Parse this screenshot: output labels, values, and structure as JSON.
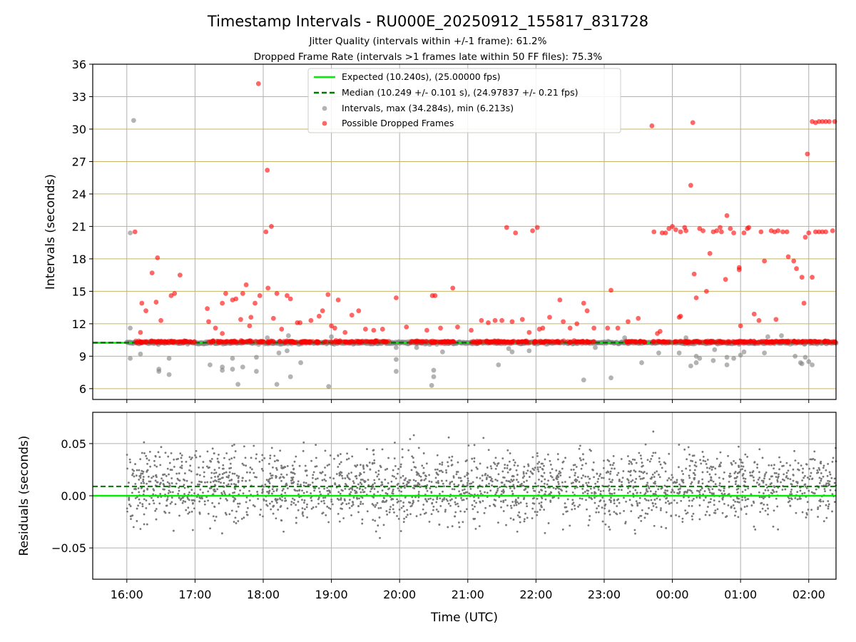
{
  "title": "Timestamp Intervals - RU000E_20250912_155817_831728",
  "subtitle_1": "Jitter Quality (intervals within +/-1 frame): 61.2%",
  "subtitle_2": "Dropped Frame Rate (intervals >1 frames late within 50 FF files): 75.3%",
  "colors": {
    "expected": "#00ee00",
    "median": "#007700",
    "intervals": "#808080",
    "dropped": "#ff0000",
    "hgrid_top": "#c8b464",
    "grid": "#b0b0b0",
    "residuals": "#777777"
  },
  "chart_data": [
    {
      "type": "scatter",
      "ylabel": "Intervals (seconds)",
      "xlim_hours": [
        15.5,
        26.4
      ],
      "ylim": [
        5,
        36
      ],
      "yticks": [
        6,
        9,
        12,
        15,
        18,
        21,
        24,
        27,
        30,
        33,
        36
      ],
      "grid": true,
      "legend_placement": "top-center",
      "legend": [
        "Expected (10.240s), (25.00000 fps)",
        "Median (10.249 +/- 0.101 s), (24.97837 +/- 0.21 fps)",
        "Intervals, max (34.284s), min (6.213s)",
        "Possible Dropped Frames"
      ],
      "expected_interval": 10.24,
      "median_interval": 10.249,
      "baseline": {
        "x_start": 16.0,
        "x_end": 26.4,
        "y": 10.24
      },
      "series": [
        {
          "name": "Intervals, max (34.284s), min (6.213s)",
          "points": [
            [
              16.1,
              30.8
            ],
            [
              16.05,
              20.4
            ],
            [
              16.05,
              11.6
            ],
            [
              16.05,
              8.8
            ],
            [
              16.2,
              9.2
            ],
            [
              16.47,
              7.8
            ],
            [
              16.47,
              7.6
            ],
            [
              16.62,
              7.3
            ],
            [
              16.62,
              8.8
            ],
            [
              17.22,
              8.2
            ],
            [
              17.4,
              8.0
            ],
            [
              17.4,
              7.7
            ],
            [
              17.55,
              7.8
            ],
            [
              17.55,
              8.8
            ],
            [
              17.63,
              6.4
            ],
            [
              17.7,
              8.0
            ],
            [
              17.9,
              7.6
            ],
            [
              17.9,
              8.9
            ],
            [
              18.06,
              10.7
            ],
            [
              18.2,
              6.4
            ],
            [
              18.23,
              9.3
            ],
            [
              18.35,
              9.5
            ],
            [
              18.37,
              10.9
            ],
            [
              18.4,
              7.1
            ],
            [
              18.55,
              8.4
            ],
            [
              18.96,
              6.2
            ],
            [
              19.0,
              10.8
            ],
            [
              19.95,
              8.7
            ],
            [
              19.95,
              7.6
            ],
            [
              19.95,
              9.8
            ],
            [
              20.25,
              9.8
            ],
            [
              20.47,
              6.3
            ],
            [
              20.5,
              7.1
            ],
            [
              20.5,
              7.7
            ],
            [
              20.63,
              9.4
            ],
            [
              21.45,
              8.2
            ],
            [
              21.6,
              9.7
            ],
            [
              21.65,
              9.4
            ],
            [
              21.9,
              9.5
            ],
            [
              22.7,
              6.8
            ],
            [
              22.87,
              9.8
            ],
            [
              23.1,
              7.0
            ],
            [
              23.55,
              8.4
            ],
            [
              23.8,
              9.3
            ],
            [
              24.1,
              9.3
            ],
            [
              24.27,
              8.1
            ],
            [
              24.35,
              8.4
            ],
            [
              24.35,
              9.0
            ],
            [
              24.4,
              8.8
            ],
            [
              24.6,
              8.6
            ],
            [
              24.62,
              9.6
            ],
            [
              24.8,
              8.2
            ],
            [
              24.8,
              8.9
            ],
            [
              24.9,
              8.8
            ],
            [
              25.0,
              9.1
            ],
            [
              25.05,
              9.4
            ],
            [
              25.35,
              9.3
            ],
            [
              25.6,
              10.9
            ],
            [
              25.8,
              9.0
            ],
            [
              25.88,
              8.4
            ],
            [
              25.9,
              8.3
            ],
            [
              25.95,
              8.9
            ],
            [
              26.0,
              8.5
            ],
            [
              26.05,
              8.2
            ],
            [
              25.4,
              10.8
            ],
            [
              24.2,
              10.7
            ],
            [
              23.3,
              10.7
            ]
          ]
        },
        {
          "name": "Possible Dropped Frames",
          "points": [
            [
              16.12,
              20.5
            ],
            [
              16.2,
              11.2
            ],
            [
              16.22,
              13.9
            ],
            [
              16.28,
              13.2
            ],
            [
              16.37,
              16.7
            ],
            [
              16.43,
              14.0
            ],
            [
              16.45,
              18.1
            ],
            [
              16.5,
              12.3
            ],
            [
              16.65,
              14.6
            ],
            [
              16.7,
              14.8
            ],
            [
              16.78,
              16.5
            ],
            [
              17.18,
              13.4
            ],
            [
              17.2,
              12.2
            ],
            [
              17.3,
              11.6
            ],
            [
              17.4,
              11.1
            ],
            [
              17.4,
              13.9
            ],
            [
              17.45,
              14.8
            ],
            [
              17.55,
              14.2
            ],
            [
              17.6,
              14.3
            ],
            [
              17.67,
              12.4
            ],
            [
              17.7,
              14.8
            ],
            [
              17.75,
              15.6
            ],
            [
              17.8,
              11.8
            ],
            [
              17.82,
              12.6
            ],
            [
              17.88,
              13.9
            ],
            [
              17.93,
              34.2
            ],
            [
              17.95,
              14.6
            ],
            [
              18.04,
              20.5
            ],
            [
              18.06,
              26.2
            ],
            [
              18.07,
              15.3
            ],
            [
              18.12,
              21.0
            ],
            [
              18.15,
              12.5
            ],
            [
              18.2,
              14.8
            ],
            [
              18.27,
              11.5
            ],
            [
              18.35,
              14.6
            ],
            [
              18.4,
              14.3
            ],
            [
              18.5,
              12.1
            ],
            [
              18.54,
              12.1
            ],
            [
              18.7,
              12.3
            ],
            [
              18.82,
              12.7
            ],
            [
              18.87,
              13.2
            ],
            [
              18.95,
              14.7
            ],
            [
              19.0,
              11.8
            ],
            [
              19.05,
              11.6
            ],
            [
              19.1,
              14.2
            ],
            [
              19.2,
              11.2
            ],
            [
              19.3,
              12.8
            ],
            [
              19.4,
              13.2
            ],
            [
              19.5,
              11.5
            ],
            [
              19.62,
              11.4
            ],
            [
              19.75,
              11.5
            ],
            [
              19.95,
              14.4
            ],
            [
              20.1,
              11.7
            ],
            [
              20.4,
              11.4
            ],
            [
              20.48,
              14.6
            ],
            [
              20.52,
              14.6
            ],
            [
              20.6,
              11.6
            ],
            [
              20.78,
              15.3
            ],
            [
              20.85,
              11.7
            ],
            [
              21.05,
              11.4
            ],
            [
              21.2,
              12.3
            ],
            [
              21.3,
              12.1
            ],
            [
              21.4,
              12.3
            ],
            [
              21.5,
              12.3
            ],
            [
              21.57,
              20.9
            ],
            [
              21.65,
              12.2
            ],
            [
              21.7,
              20.4
            ],
            [
              21.8,
              12.4
            ],
            [
              21.9,
              11.2
            ],
            [
              21.95,
              20.6
            ],
            [
              22.02,
              20.9
            ],
            [
              22.05,
              11.5
            ],
            [
              22.1,
              11.6
            ],
            [
              22.2,
              12.6
            ],
            [
              22.35,
              14.2
            ],
            [
              22.4,
              12.2
            ],
            [
              22.5,
              11.6
            ],
            [
              22.6,
              12.0
            ],
            [
              22.7,
              13.9
            ],
            [
              22.75,
              13.2
            ],
            [
              22.85,
              11.6
            ],
            [
              23.05,
              11.6
            ],
            [
              23.1,
              15.1
            ],
            [
              23.2,
              11.6
            ],
            [
              23.35,
              12.2
            ],
            [
              23.5,
              12.5
            ],
            [
              23.7,
              30.3
            ],
            [
              23.73,
              20.5
            ],
            [
              23.78,
              11.1
            ],
            [
              23.85,
              20.4
            ],
            [
              23.9,
              20.4
            ],
            [
              23.95,
              20.8
            ],
            [
              24.0,
              21.0
            ],
            [
              24.05,
              20.7
            ],
            [
              24.1,
              12.6
            ],
            [
              24.12,
              20.5
            ],
            [
              24.18,
              20.9
            ],
            [
              24.2,
              20.6
            ],
            [
              24.27,
              24.8
            ],
            [
              24.3,
              30.6
            ],
            [
              24.32,
              16.6
            ],
            [
              24.35,
              14.4
            ],
            [
              24.4,
              20.8
            ],
            [
              24.45,
              20.6
            ],
            [
              24.5,
              15.0
            ],
            [
              24.55,
              18.5
            ],
            [
              24.6,
              20.5
            ],
            [
              24.65,
              20.6
            ],
            [
              24.7,
              20.9
            ],
            [
              24.72,
              20.5
            ],
            [
              24.78,
              16.1
            ],
            [
              24.8,
              22.0
            ],
            [
              24.85,
              20.8
            ],
            [
              24.9,
              20.4
            ],
            [
              24.98,
              17.2
            ],
            [
              24.98,
              17.0
            ],
            [
              25.0,
              11.8
            ],
            [
              25.05,
              20.4
            ],
            [
              25.1,
              20.8
            ],
            [
              25.12,
              20.9
            ],
            [
              25.2,
              12.9
            ],
            [
              25.27,
              12.3
            ],
            [
              25.3,
              20.5
            ],
            [
              25.35,
              17.8
            ],
            [
              25.45,
              20.6
            ],
            [
              25.5,
              20.5
            ],
            [
              25.52,
              12.4
            ],
            [
              25.55,
              20.6
            ],
            [
              25.62,
              20.5
            ],
            [
              25.68,
              20.5
            ],
            [
              25.7,
              18.2
            ],
            [
              25.78,
              17.8
            ],
            [
              25.82,
              17.1
            ],
            [
              25.9,
              16.3
            ],
            [
              25.93,
              13.9
            ],
            [
              25.95,
              20.0
            ],
            [
              26.0,
              20.4
            ],
            [
              26.05,
              16.3
            ],
            [
              26.1,
              20.5
            ],
            [
              26.15,
              20.5
            ],
            [
              26.2,
              20.5
            ],
            [
              26.25,
              20.5
            ],
            [
              26.35,
              20.6
            ],
            [
              25.98,
              27.7
            ],
            [
              26.05,
              30.7
            ],
            [
              26.1,
              30.6
            ],
            [
              26.15,
              30.7
            ],
            [
              26.2,
              30.7
            ],
            [
              26.25,
              30.7
            ],
            [
              26.3,
              30.7
            ],
            [
              26.38,
              30.7
            ],
            [
              24.12,
              12.7
            ],
            [
              23.82,
              11.3
            ]
          ]
        }
      ]
    },
    {
      "type": "scatter",
      "xlabel": "Time (UTC)",
      "ylabel": "Residuals (seconds)",
      "xlim_hours": [
        15.5,
        26.4
      ],
      "ylim": [
        -0.08,
        0.08
      ],
      "yticks": [
        0.05,
        0.0,
        -0.05
      ],
      "ytick_labels": [
        "0.05",
        "0.00",
        "−0.05"
      ],
      "xticks_hours": [
        16,
        17,
        18,
        19,
        20,
        21,
        22,
        23,
        24,
        25,
        26
      ],
      "xtick_labels": [
        "16:00",
        "17:00",
        "18:00",
        "19:00",
        "20:00",
        "21:00",
        "22:00",
        "23:00",
        "00:00",
        "01:00",
        "02:00"
      ],
      "grid": true,
      "expected_residual": 0.0,
      "median_residual": 0.009,
      "residual_x_range": [
        16.0,
        26.4
      ],
      "residual_point_count": 2400,
      "residual_std": 0.035
    }
  ]
}
